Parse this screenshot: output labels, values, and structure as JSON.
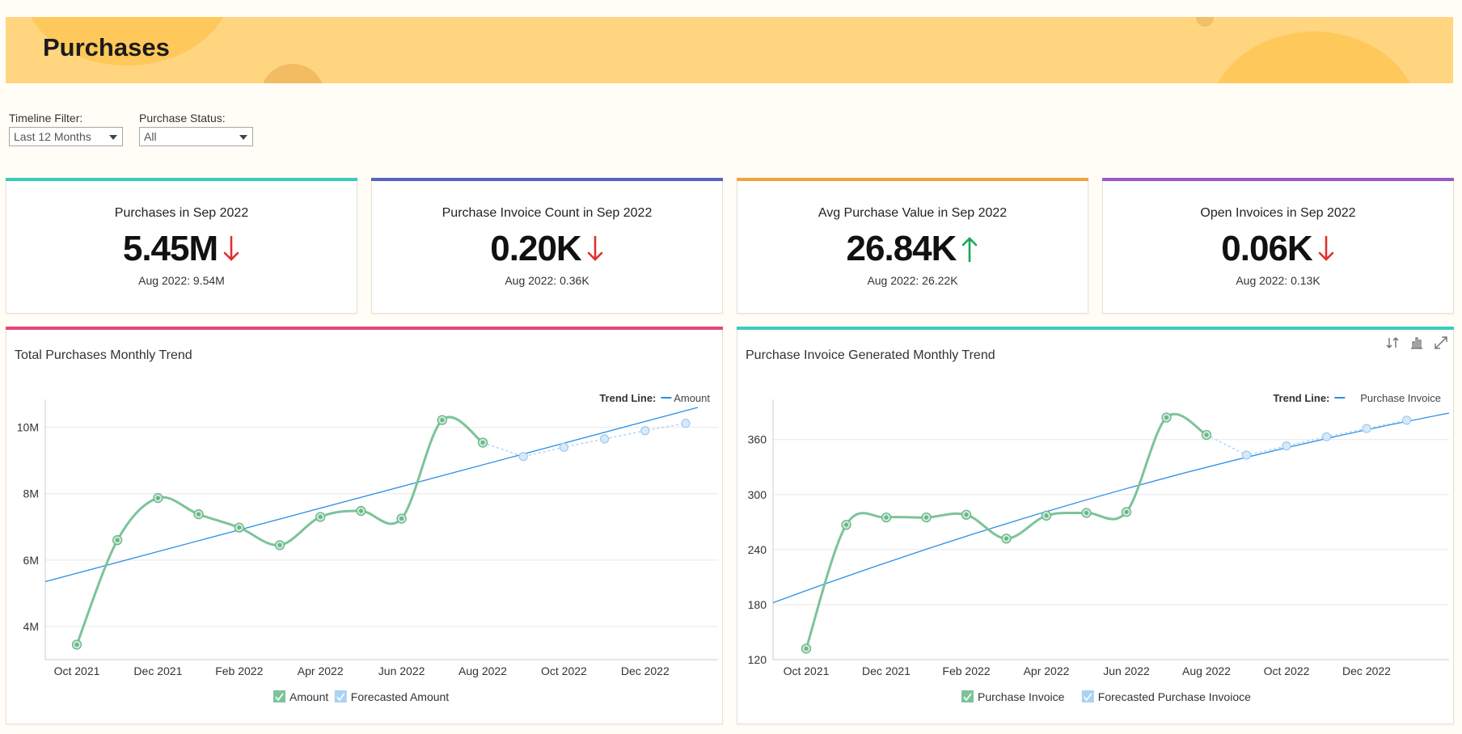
{
  "page": {
    "title": "Purchases"
  },
  "filters": {
    "timeline": {
      "label": "Timeline Filter:",
      "value": "Last 12 Months"
    },
    "status": {
      "label": "Purchase Status:",
      "value": "All"
    }
  },
  "colors": {
    "banner": "#ffd580",
    "series": "#7cc39a",
    "forecast": "#a9d2f3",
    "trend": "#2b8fe6",
    "down": "#e0302e",
    "up": "#19a757"
  },
  "kpis": [
    {
      "title": "Purchases in Sep 2022",
      "value": "5.45M",
      "trend": "down",
      "prev": "Aug 2022: 9.54M",
      "color": "#3bcbbd"
    },
    {
      "title": "Purchase Invoice Count in Sep 2022",
      "value": "0.20K",
      "trend": "down",
      "prev": "Aug 2022: 0.36K",
      "color": "#5563c1"
    },
    {
      "title": "Avg Purchase Value in Sep 2022",
      "value": "26.84K",
      "trend": "up",
      "prev": "Aug 2022: 26.22K",
      "color": "#f3a33a"
    },
    {
      "title": "Open Invoices in Sep 2022",
      "value": "0.06K",
      "trend": "down",
      "prev": "Aug 2022: 0.13K",
      "color": "#9b59c6"
    }
  ],
  "chart_data": [
    {
      "type": "line",
      "title": "Total Purchases Monthly Trend",
      "top_color": "#e8457a",
      "x": [
        "Oct 2021",
        "Nov 2021",
        "Dec 2021",
        "Jan 2022",
        "Feb 2022",
        "Mar 2022",
        "Apr 2022",
        "May 2022",
        "Jun 2022",
        "Jul 2022",
        "Aug 2022",
        "Sep 2022",
        "Oct 2022",
        "Nov 2022",
        "Dec 2022",
        "Jan 2023"
      ],
      "tick_labels": [
        "Oct 2021",
        "Dec 2021",
        "Feb 2022",
        "Apr 2022",
        "Jun 2022",
        "Aug 2022",
        "Oct 2022",
        "Dec 2022"
      ],
      "y_ticks": [
        4000000,
        6000000,
        8000000,
        10000000
      ],
      "y_tick_labels": [
        "4M",
        "6M",
        "8M",
        "10M"
      ],
      "ylim": [
        3000000,
        10600000
      ],
      "series": [
        {
          "name": "Amount",
          "values": [
            3450000,
            6600000,
            7870000,
            7380000,
            6980000,
            6450000,
            7300000,
            7480000,
            7250000,
            10220000,
            9540000,
            null,
            null,
            null,
            null,
            null
          ]
        },
        {
          "name": "Forecasted Amount",
          "values": [
            null,
            null,
            null,
            null,
            null,
            null,
            null,
            null,
            null,
            null,
            9540000,
            9120000,
            9400000,
            9650000,
            9900000,
            10120000
          ]
        }
      ],
      "trend": {
        "label": "Trend Line:",
        "name": "Amount",
        "start": 5350000,
        "end": 10600000
      }
    },
    {
      "type": "line",
      "title": "Purchase Invoice Generated Monthly Trend",
      "top_color": "#3bcbbd",
      "x": [
        "Oct 2021",
        "Nov 2021",
        "Dec 2021",
        "Jan 2022",
        "Feb 2022",
        "Mar 2022",
        "Apr 2022",
        "May 2022",
        "Jun 2022",
        "Jul 2022",
        "Aug 2022",
        "Sep 2022",
        "Oct 2022",
        "Nov 2022",
        "Dec 2022",
        "Jan 2023"
      ],
      "tick_labels": [
        "Oct 2021",
        "Dec 2021",
        "Feb 2022",
        "Apr 2022",
        "Jun 2022",
        "Aug 2022",
        "Oct 2022",
        "Dec 2022"
      ],
      "y_ticks": [
        120,
        180,
        240,
        300,
        360
      ],
      "y_tick_labels": [
        "120",
        "180",
        "240",
        "300",
        "360"
      ],
      "ylim": [
        120,
        395
      ],
      "series": [
        {
          "name": "Purchase Invoice",
          "values": [
            132,
            267,
            275,
            275,
            278,
            252,
            277,
            280,
            281,
            384,
            365,
            null,
            null,
            null,
            null,
            null
          ]
        },
        {
          "name": "Forecasted Purchase Invoioce",
          "values": [
            null,
            null,
            null,
            null,
            null,
            null,
            null,
            null,
            null,
            null,
            365,
            343,
            353,
            363,
            372,
            381
          ]
        }
      ],
      "trend": {
        "label": "Trend Line:",
        "name": "Purchase Invoice",
        "start": 182,
        "end": 380
      }
    }
  ],
  "tools": [
    "sort-icon",
    "bar-chart-icon",
    "expand-icon"
  ]
}
